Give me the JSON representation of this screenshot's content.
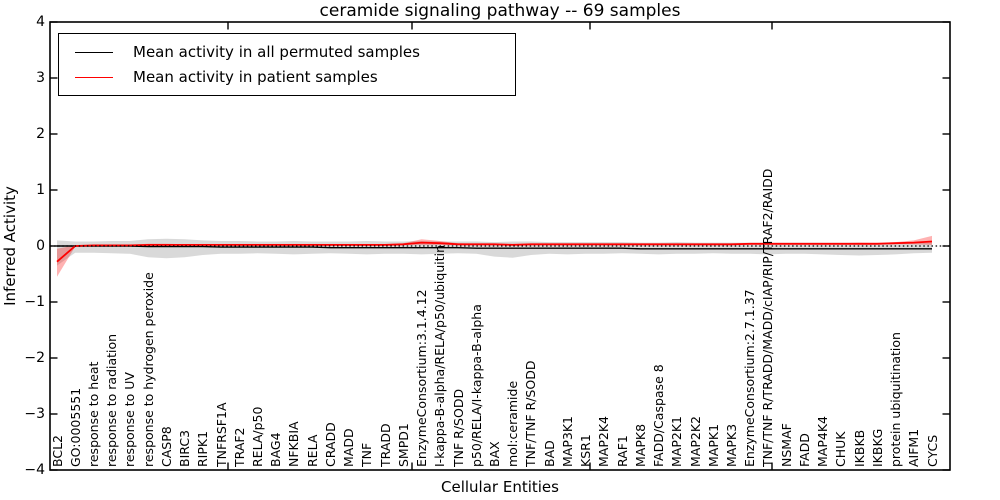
{
  "title": "ceramide signaling pathway -- 69 samples",
  "legend": {
    "items": [
      {
        "label": "Mean activity in all permuted samples",
        "color": "#000000"
      },
      {
        "label": "Mean activity in patient samples",
        "color": "#ff0000"
      }
    ]
  },
  "axis": {
    "ytick_labels": [
      "4",
      "3",
      "2",
      "1",
      "0",
      "−1",
      "−2",
      "−3",
      "−4"
    ],
    "ytick_values": [
      4,
      3,
      2,
      1,
      0,
      -1,
      -2,
      -3,
      -4
    ]
  },
  "chart_data": {
    "type": "line",
    "title": "ceramide signaling pathway -- 69 samples",
    "xlabel": "Cellular Entities",
    "ylabel": "Inferred Activity",
    "ylim": [
      -4,
      4
    ],
    "grid": false,
    "legend_position": "upper left",
    "zero_line": true,
    "categories": [
      "BCL2",
      "GO:0005551",
      "response to heat",
      "response to radiation",
      "response to UV",
      "response to hydrogen peroxide",
      "CASP8",
      "BIRC3",
      "RIPK1",
      "TNFRSF1A",
      "TRAF2",
      "RELA/p50",
      "BAG4",
      "NFKBIA",
      "RELA",
      "CRADD",
      "MADD",
      "TNF",
      "TRADD",
      "SMPD1",
      "EnzymeConsortium:3.1.4.12",
      "I-kappa-B-alpha/RELA/p50/ubiquitin",
      "TNF R/SODD",
      "p50/RELA/I-kappa-B-alpha",
      "BAX",
      "mol:ceramide",
      "TNF/TNF R/SODD",
      "BAD",
      "MAP3K1",
      "KSR1",
      "MAP2K4",
      "RAF1",
      "MAPK8",
      "FADD/Caspase 8",
      "MAP2K1",
      "MAP2K2",
      "MAPK1",
      "MAPK3",
      "EnzymeConsortium:2.7.1.37",
      "TNF/TNF R/TRADD/MADD/cIAP/RIP/TRAF2/RAIDD",
      "NSMAF",
      "FADD",
      "MAP4K4",
      "CHUK",
      "IKBKB",
      "IKBKG",
      "protein ubiquitination",
      "AIFM1",
      "CYCS"
    ],
    "series": [
      {
        "name": "Mean activity in all permuted samples",
        "color": "#000000",
        "values": [
          0,
          0,
          0,
          0,
          0,
          -0.01,
          -0.01,
          -0.01,
          -0.01,
          -0.02,
          -0.02,
          -0.02,
          -0.02,
          -0.02,
          -0.02,
          -0.03,
          -0.03,
          -0.03,
          -0.03,
          -0.03,
          -0.03,
          -0.03,
          -0.03,
          -0.04,
          -0.04,
          -0.04,
          -0.04,
          -0.04,
          -0.04,
          -0.04,
          -0.04,
          -0.04,
          -0.05,
          -0.05,
          -0.05,
          -0.05,
          -0.05,
          -0.05,
          -0.05,
          -0.05,
          -0.05,
          -0.05,
          -0.05,
          -0.05,
          -0.05,
          -0.05,
          -0.05,
          -0.05,
          -0.05
        ]
      },
      {
        "name": "Mean activity in patient samples",
        "color": "#ff0000",
        "values": [
          -0.28,
          0,
          0.01,
          0.01,
          0.01,
          0.02,
          0.02,
          0.02,
          0.02,
          0.02,
          0.02,
          0.02,
          0.02,
          0.02,
          0.02,
          0.02,
          0.02,
          0.02,
          0.02,
          0.03,
          0.06,
          0.05,
          0.03,
          0.03,
          0.03,
          0.02,
          0.03,
          0.03,
          0.03,
          0.03,
          0.03,
          0.03,
          0.03,
          0.03,
          0.03,
          0.03,
          0.03,
          0.03,
          0.04,
          0.04,
          0.04,
          0.04,
          0.04,
          0.04,
          0.04,
          0.04,
          0.05,
          0.06,
          0.08
        ]
      }
    ],
    "bands": [
      {
        "name": "permuted-samples-confidence-band",
        "color": "#aaaaaa",
        "opacity": 0.45,
        "upper": [
          0.1,
          0.08,
          0.08,
          0.09,
          0.09,
          0.12,
          0.13,
          0.12,
          0.1,
          0.09,
          0.09,
          0.08,
          0.08,
          0.09,
          0.08,
          0.08,
          0.08,
          0.09,
          0.08,
          0.08,
          0.09,
          0.08,
          0.08,
          0.08,
          0.07,
          0.08,
          0.08,
          0.07,
          0.07,
          0.07,
          0.07,
          0.07,
          0.06,
          0.06,
          0.07,
          0.06,
          0.06,
          0.06,
          0.06,
          0.06,
          0.06,
          0.06,
          0.06,
          0.06,
          0.06,
          0.05,
          0.05,
          0.05,
          0.06
        ],
        "lower": [
          -0.35,
          -0.12,
          -0.12,
          -0.13,
          -0.14,
          -0.2,
          -0.22,
          -0.2,
          -0.16,
          -0.14,
          -0.14,
          -0.13,
          -0.14,
          -0.15,
          -0.14,
          -0.13,
          -0.14,
          -0.15,
          -0.14,
          -0.14,
          -0.15,
          -0.14,
          -0.13,
          -0.14,
          -0.19,
          -0.21,
          -0.16,
          -0.14,
          -0.15,
          -0.14,
          -0.14,
          -0.13,
          -0.14,
          -0.15,
          -0.14,
          -0.14,
          -0.13,
          -0.14,
          -0.14,
          -0.15,
          -0.14,
          -0.14,
          -0.15,
          -0.16,
          -0.17,
          -0.16,
          -0.15,
          -0.13,
          -0.12
        ]
      },
      {
        "name": "patient-samples-confidence-band",
        "color": "#ff0000",
        "opacity": 0.3,
        "upper": [
          -0.05,
          0.01,
          0.02,
          0.02,
          0.02,
          0.04,
          0.04,
          0.03,
          0.03,
          0.03,
          0.03,
          0.03,
          0.03,
          0.03,
          0.03,
          0.03,
          0.03,
          0.03,
          0.03,
          0.05,
          0.12,
          0.09,
          0.05,
          0.04,
          0.04,
          0.04,
          0.04,
          0.04,
          0.04,
          0.04,
          0.04,
          0.04,
          0.04,
          0.04,
          0.04,
          0.04,
          0.04,
          0.04,
          0.05,
          0.05,
          0.05,
          0.05,
          0.05,
          0.05,
          0.06,
          0.06,
          0.07,
          0.1,
          0.18
        ],
        "lower": [
          -0.55,
          -0.01,
          0,
          0,
          0,
          0.01,
          0.01,
          0.01,
          0.01,
          0.01,
          0.01,
          0.01,
          0.01,
          0.01,
          0.01,
          0.01,
          0.01,
          0.01,
          0.01,
          0.02,
          0.02,
          0.02,
          0.02,
          0.02,
          0.02,
          0.01,
          0.02,
          0.02,
          0.02,
          0.02,
          0.02,
          0.02,
          0.02,
          0.02,
          0.02,
          0.02,
          0.02,
          0.02,
          0.03,
          0.03,
          0.03,
          0.03,
          0.03,
          0.03,
          0.03,
          0.03,
          0.03,
          0.03,
          0.02
        ]
      }
    ]
  }
}
